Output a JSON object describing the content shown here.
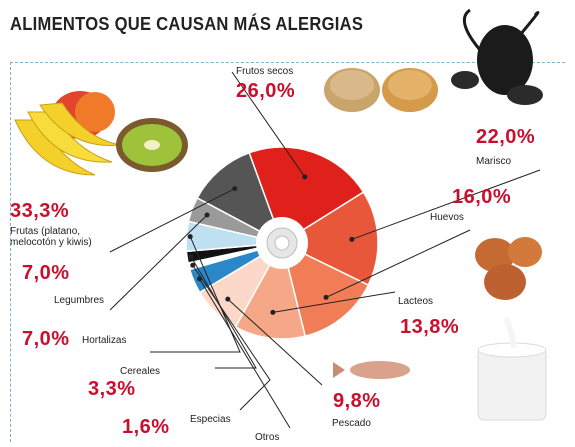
{
  "chart_data": {
    "type": "pie",
    "title": "ALIMENTOS QUE CAUSAN MÁS ALERGIAS",
    "slices": [
      {
        "label": "Frutos secos",
        "value": 26.0,
        "value_text": "26,0%",
        "color": "#e0201b"
      },
      {
        "label": "Marisco",
        "value": 22.0,
        "value_text": "22,0%",
        "color": "#e9573a"
      },
      {
        "label": "Huevos",
        "value": 16.0,
        "value_text": "16,0%",
        "color": "#f07d55"
      },
      {
        "label": "Lacteos",
        "value": 13.8,
        "value_text": "13,8%",
        "color": "#f5a788"
      },
      {
        "label": "Pescado",
        "value": 9.8,
        "value_text": "9,8%",
        "color": "#fbd8c8"
      },
      {
        "label": "Otros",
        "value": null,
        "value_text": "",
        "color": "#2a87c8"
      },
      {
        "label": "Especias",
        "value": 1.6,
        "value_text": "1,6%",
        "color": "#ffffff"
      },
      {
        "label": "Cereales",
        "value": 3.3,
        "value_text": "3,3%",
        "color": "#111111"
      },
      {
        "label": "Hortalizas",
        "value": 7.0,
        "value_text": "7,0%",
        "color": "#bfe0f0"
      },
      {
        "label": "Legumbres",
        "value": 7.0,
        "value_text": "7,0%",
        "color": "#9a9a9a"
      },
      {
        "label": "Frutas (platano, melocotón y kiwis)",
        "value": 33.3,
        "value_text": "33,3%",
        "color": "#555555"
      }
    ]
  }
}
